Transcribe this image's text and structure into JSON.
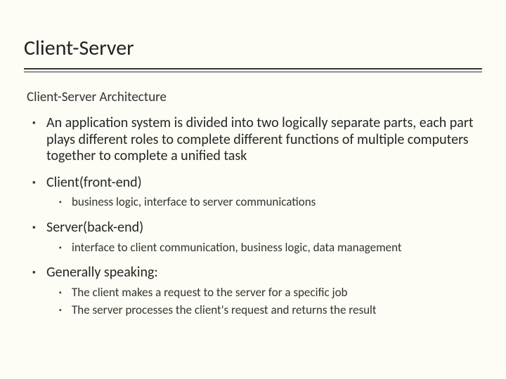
{
  "background_color": "#fdfdf5",
  "text_color": "#262626",
  "title": "Client-Server",
  "title_fontsize": 30,
  "subtitle": "Client-Server Architecture",
  "subtitle_fontsize": 19,
  "rule_color": "#333333",
  "bullets": [
    {
      "text": "An application system is divided into two logically separate parts, each part plays different roles to complete different functions of multiple computers together to complete a unified task",
      "sub": []
    },
    {
      "text": "Client(front-end)",
      "sub": [
        "business logic, interface to server communications"
      ]
    },
    {
      "text": "Server(back-end)",
      "sub": [
        "interface to client communication, business logic, data management"
      ]
    },
    {
      "text": "Generally speaking:",
      "sub": [
        "The client makes a request to the server for a specific job",
        "The server processes the client's request and returns the result"
      ]
    }
  ],
  "top_bullet_fontsize": 20,
  "sub_bullet_fontsize": 17
}
